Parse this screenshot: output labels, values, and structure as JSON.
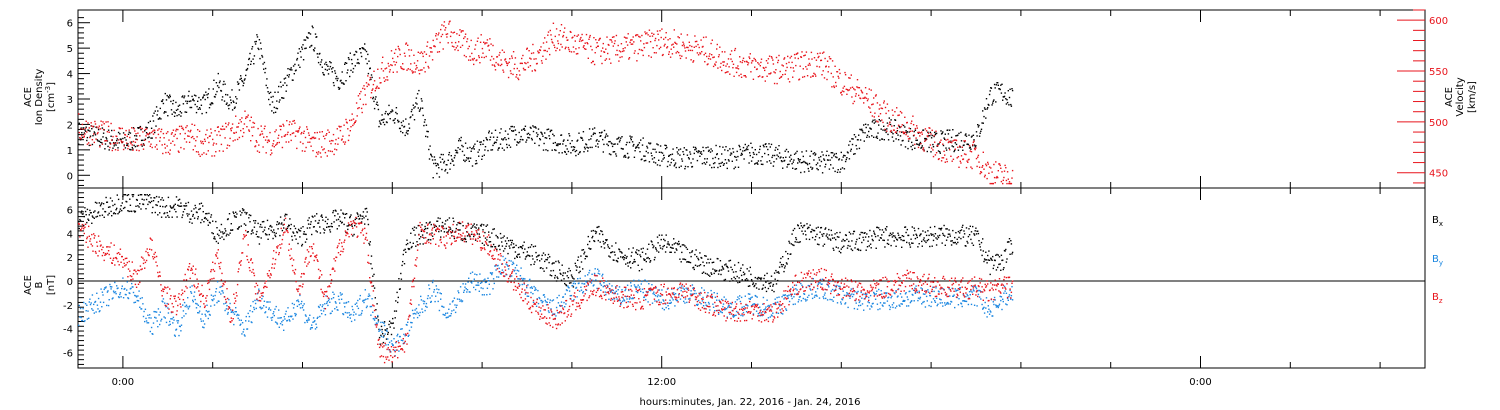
{
  "chart_data": [
    {
      "type": "scatter",
      "panel": "top",
      "ylabel_left": [
        "ACE",
        "Ion Density",
        "[cm",
        "-3",
        "]"
      ],
      "ylabel_right": [
        "ACE",
        "Velocity",
        "[km/s]"
      ],
      "y_left_range": [
        -0.5,
        6.5
      ],
      "y_left_ticks": [
        "0",
        "1",
        "2",
        "3",
        "4",
        "5",
        "6"
      ],
      "y_right_range": [
        435,
        610
      ],
      "y_right_ticks": [
        "450",
        "500",
        "550",
        "600"
      ],
      "colors": {
        "density": "#000000",
        "velocity": "#e8141c"
      },
      "density_series": {
        "name": "Ion Density",
        "x": [
          -1.0,
          -0.5,
          0.0,
          0.3,
          0.6,
          0.9,
          1.2,
          1.5,
          1.8,
          2.1,
          2.4,
          2.7,
          3.0,
          3.3,
          3.6,
          3.9,
          4.2,
          4.5,
          4.8,
          5.1,
          5.4,
          5.7,
          6.0,
          6.3,
          6.6,
          6.9,
          7.2,
          7.5,
          7.8,
          8.1,
          8.4,
          8.8,
          9.2,
          9.6,
          10.0,
          10.5,
          11.0,
          11.5,
          12.0,
          12.5,
          13.0,
          13.5,
          14.0,
          14.5,
          15.0,
          15.5,
          16.0,
          16.5,
          17.0,
          17.5,
          18.0,
          18.5,
          19.0,
          19.3,
          19.6,
          19.8
        ],
        "y": [
          1.7,
          1.5,
          1.3,
          1.5,
          1.8,
          2.9,
          2.5,
          3.0,
          2.8,
          3.6,
          2.9,
          3.8,
          5.3,
          2.7,
          3.6,
          4.6,
          5.5,
          4.2,
          3.8,
          4.5,
          4.8,
          2.1,
          2.5,
          1.9,
          3.0,
          0.3,
          0.5,
          1.1,
          0.8,
          1.3,
          1.4,
          1.7,
          1.5,
          1.4,
          1.2,
          1.5,
          1.2,
          1.1,
          0.8,
          0.7,
          0.8,
          0.7,
          0.9,
          0.8,
          0.6,
          0.5,
          0.6,
          1.7,
          1.9,
          1.5,
          1.3,
          1.4,
          1.5,
          3.2,
          3.3,
          3.0
        ]
      },
      "velocity_series": {
        "name": "Velocity",
        "x": [
          -1.0,
          -0.5,
          0.0,
          0.3,
          0.6,
          0.9,
          1.2,
          1.5,
          1.8,
          2.1,
          2.4,
          2.7,
          3.0,
          3.3,
          3.6,
          3.9,
          4.2,
          4.5,
          4.8,
          5.1,
          5.4,
          5.7,
          6.0,
          6.3,
          6.6,
          6.9,
          7.2,
          7.5,
          7.8,
          8.1,
          8.4,
          8.8,
          9.2,
          9.6,
          10.0,
          10.5,
          11.0,
          11.5,
          12.0,
          12.5,
          13.0,
          13.5,
          14.0,
          14.5,
          15.0,
          15.5,
          16.0,
          16.5,
          17.0,
          17.5,
          18.0,
          18.5,
          19.0,
          19.3,
          19.6,
          19.8
        ],
        "y": [
          495,
          488,
          485,
          480,
          486,
          480,
          482,
          487,
          478,
          482,
          490,
          500,
          485,
          482,
          490,
          488,
          478,
          480,
          484,
          500,
          530,
          548,
          560,
          565,
          558,
          572,
          590,
          578,
          570,
          575,
          560,
          555,
          565,
          585,
          578,
          570,
          572,
          575,
          580,
          575,
          570,
          560,
          555,
          552,
          555,
          560,
          540,
          525,
          505,
          495,
          480,
          470,
          468,
          450,
          447,
          443
        ]
      }
    },
    {
      "type": "scatter",
      "panel": "bottom",
      "ylabel_left": [
        "ACE",
        "B",
        "[nT]"
      ],
      "y_range": [
        -7.3,
        7.8
      ],
      "y_ticks": [
        "-6",
        "-4",
        "-2",
        "0",
        "2",
        "4",
        "6"
      ],
      "xlabel": "hours:minutes, Jan. 22, 2016 - Jan. 24, 2016",
      "x_range": [
        -1.0,
        29.0
      ],
      "x_ticks": [
        "0:00",
        "12:00",
        "0:00"
      ],
      "x_tick_hours": [
        0,
        12,
        24
      ],
      "zero_line": true,
      "colors": {
        "Bx": "#000000",
        "By": "#1a86e0",
        "Bz": "#e8141c"
      },
      "series": [
        {
          "name": "B",
          "sub": "x",
          "x": [
            -1.0,
            -0.5,
            0.0,
            0.3,
            0.6,
            0.9,
            1.2,
            1.5,
            1.8,
            2.1,
            2.4,
            2.7,
            3.0,
            3.3,
            3.6,
            3.9,
            4.2,
            4.5,
            4.8,
            5.1,
            5.4,
            5.7,
            6.0,
            6.3,
            6.6,
            6.9,
            7.2,
            7.5,
            7.8,
            8.1,
            8.4,
            8.8,
            9.2,
            9.6,
            10.0,
            10.5,
            11.0,
            11.5,
            12.0,
            12.5,
            13.0,
            13.5,
            14.0,
            14.5,
            15.0,
            15.5,
            16.0,
            16.5,
            17.0,
            17.5,
            18.0,
            18.5,
            19.0,
            19.3,
            19.6,
            19.8
          ],
          "y": [
            5.2,
            6.0,
            6.8,
            6.6,
            6.7,
            6.2,
            6.3,
            5.8,
            5.7,
            4.0,
            5.0,
            5.3,
            4.0,
            4.4,
            5.0,
            3.6,
            4.8,
            4.9,
            5.2,
            4.7,
            5.8,
            -4.5,
            -3.8,
            3.4,
            3.9,
            4.4,
            4.7,
            4.2,
            4.0,
            3.9,
            3.4,
            2.7,
            2.1,
            1.0,
            0.3,
            4.0,
            2.4,
            1.8,
            3.2,
            2.2,
            1.4,
            0.9,
            0.4,
            -0.1,
            4.2,
            3.9,
            3.2,
            3.5,
            3.8,
            3.7,
            3.8,
            3.9,
            3.7,
            1.5,
            1.8,
            3.2
          ]
        },
        {
          "name": "B",
          "sub": "y",
          "x": [
            -1.0,
            -0.5,
            0.0,
            0.3,
            0.6,
            0.9,
            1.2,
            1.5,
            1.8,
            2.1,
            2.4,
            2.7,
            3.0,
            3.3,
            3.6,
            3.9,
            4.2,
            4.5,
            4.8,
            5.1,
            5.4,
            5.7,
            6.0,
            6.3,
            6.6,
            6.9,
            7.2,
            7.5,
            7.8,
            8.1,
            8.4,
            8.8,
            9.2,
            9.6,
            10.0,
            10.5,
            11.0,
            11.5,
            12.0,
            12.5,
            13.0,
            13.5,
            14.0,
            14.5,
            15.0,
            15.5,
            16.0,
            16.5,
            17.0,
            17.5,
            18.0,
            18.5,
            19.0,
            19.3,
            19.6,
            19.8
          ],
          "y": [
            -2.8,
            -1.5,
            -0.5,
            -1.2,
            -3.8,
            -2.2,
            -4.0,
            -1.0,
            -3.2,
            -0.8,
            -2.5,
            -4.0,
            -1.2,
            -2.5,
            -3.5,
            -1.5,
            -3.8,
            -2.0,
            -1.6,
            -3.0,
            -1.2,
            -3.5,
            -5.6,
            -4.2,
            -2.2,
            -0.6,
            -2.8,
            -1.2,
            0.2,
            -0.6,
            1.4,
            0.6,
            -1.5,
            -2.4,
            -0.8,
            0.4,
            -1.4,
            -0.5,
            -1.6,
            -0.9,
            -1.5,
            -2.2,
            -1.8,
            -2.3,
            -1.0,
            -0.5,
            -1.2,
            -1.6,
            -1.5,
            -1.3,
            -1.2,
            -1.4,
            -1.2,
            -2.5,
            -1.3,
            -1.0
          ]
        },
        {
          "name": "B",
          "sub": "z",
          "x": [
            -1.0,
            -0.5,
            0.0,
            0.3,
            0.6,
            0.9,
            1.2,
            1.5,
            1.8,
            2.1,
            2.4,
            2.7,
            3.0,
            3.3,
            3.6,
            3.9,
            4.2,
            4.5,
            4.8,
            5.1,
            5.4,
            5.7,
            6.0,
            6.3,
            6.6,
            6.9,
            7.2,
            7.5,
            7.8,
            8.1,
            8.4,
            8.8,
            9.2,
            9.6,
            10.0,
            10.5,
            11.0,
            11.5,
            12.0,
            12.5,
            13.0,
            13.5,
            14.0,
            14.5,
            15.0,
            15.5,
            16.0,
            16.5,
            17.0,
            17.5,
            18.0,
            18.5,
            19.0,
            19.3,
            19.6,
            19.8
          ],
          "y": [
            4.5,
            2.8,
            1.8,
            0.2,
            3.2,
            -1.0,
            -2.2,
            1.2,
            -1.6,
            2.3,
            -3.2,
            3.8,
            -1.5,
            1.2,
            4.8,
            -0.8,
            3.4,
            -1.8,
            2.8,
            5.0,
            3.6,
            -5.8,
            -6.2,
            -4.8,
            4.2,
            4.0,
            3.6,
            4.3,
            3.9,
            3.2,
            1.5,
            -0.5,
            -2.2,
            -3.2,
            -2.0,
            -0.3,
            -1.2,
            -1.5,
            -1.0,
            -0.8,
            -1.8,
            -2.5,
            -2.4,
            -2.6,
            -0.2,
            0.3,
            -0.5,
            -1.0,
            -0.4,
            0.1,
            -0.3,
            -0.6,
            -0.5,
            -0.9,
            -0.4,
            -0.5
          ]
        }
      ]
    }
  ]
}
